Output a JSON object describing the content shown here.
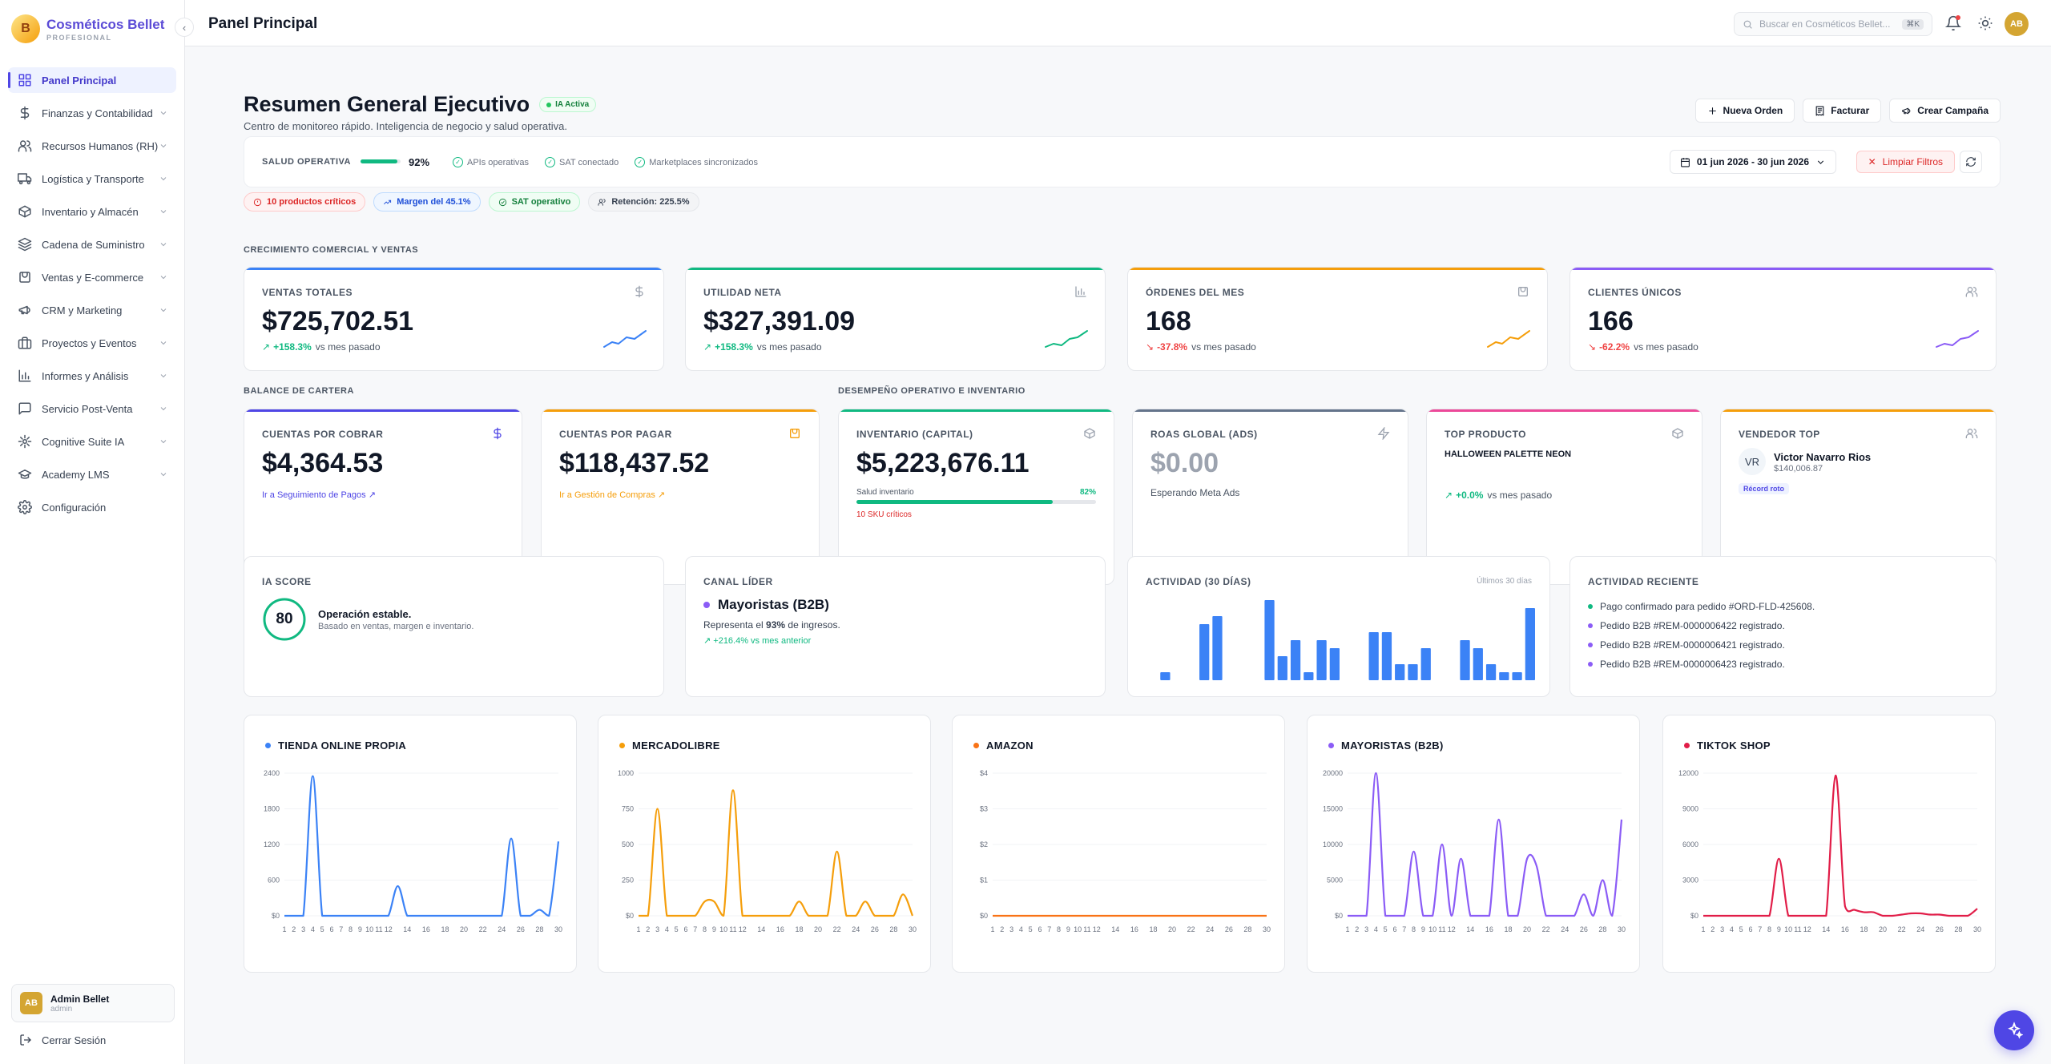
{
  "brand": {
    "name": "Cosméticos Bellet",
    "sub": "PROFESIONAL",
    "logo_text": "B"
  },
  "sidebar": {
    "collapse_glyph": "‹",
    "items": [
      {
        "label": "Panel Principal",
        "icon": "grid-icon",
        "active": true,
        "chev": false
      },
      {
        "label": "Finanzas y Contabilidad",
        "icon": "dollar-icon",
        "chev": true
      },
      {
        "label": "Recursos Humanos (RH)",
        "icon": "users-icon",
        "chev": true
      },
      {
        "label": "Logística y Transporte",
        "icon": "truck-icon",
        "chev": true
      },
      {
        "label": "Inventario y Almacén",
        "icon": "box-icon",
        "chev": true
      },
      {
        "label": "Cadena de Suministro",
        "icon": "layers-icon",
        "chev": true
      },
      {
        "label": "Ventas y E-commerce",
        "icon": "cart-icon",
        "chev": true
      },
      {
        "label": "CRM y Marketing",
        "icon": "megaphone-icon",
        "chev": true
      },
      {
        "label": "Proyectos y Eventos",
        "icon": "briefcase-icon",
        "chev": true
      },
      {
        "label": "Informes y Análisis",
        "icon": "chart-icon",
        "chev": true
      },
      {
        "label": "Servicio Post-Venta",
        "icon": "message-icon",
        "chev": true
      },
      {
        "label": "Cognitive Suite IA",
        "icon": "brain-icon",
        "chev": true
      },
      {
        "label": "Academy LMS",
        "icon": "graduation-icon",
        "chev": true
      },
      {
        "label": "Configuración",
        "icon": "gear-icon",
        "chev": false
      }
    ]
  },
  "user": {
    "initials": "AB",
    "name": "Admin Bellet",
    "role": "admin",
    "logout": "Cerrar Sesión"
  },
  "topbar": {
    "title": "Panel Principal",
    "search_placeholder": "Buscar en Cosméticos Bellet...",
    "search_kbd": "⌘K",
    "avatar": "AB"
  },
  "header": {
    "title": "Resumen General Ejecutivo",
    "badge": "IA Activa",
    "subtitle": "Centro de monitoreo rápido. Inteligencia de negocio y salud operativa.",
    "actions": [
      {
        "label": "Nueva Orden",
        "icon": "plus-icon"
      },
      {
        "label": "Facturar",
        "icon": "receipt-icon"
      },
      {
        "label": "Crear Campaña",
        "icon": "megaphone-icon"
      }
    ]
  },
  "health": {
    "label": "SALUD OPERATIVA",
    "pct": "92%",
    "pct_value": 0.92,
    "checks": [
      "APIs operativas",
      "SAT conectado",
      "Marketplaces sincronizados"
    ],
    "date_range": "01 jun 2026 - 30 jun 2026",
    "clear": "Limpiar Filtros"
  },
  "chips": [
    {
      "label": "10 productos críticos",
      "color": "#dc2626",
      "bg": "#fef2f2",
      "border": "#fecaca"
    },
    {
      "label": "Margen del 45.1%",
      "color": "#1d4ed8",
      "bg": "#eff6ff",
      "border": "#bfdbfe"
    },
    {
      "label": "SAT operativo",
      "color": "#15803d",
      "bg": "#f0fdf4",
      "border": "#bbf7d0"
    },
    {
      "label": "Retención: 225.5%",
      "color": "#374151",
      "bg": "#f3f4f6",
      "border": "#e5e7eb"
    }
  ],
  "sections": {
    "growth": "CRECIMIENTO COMERCIAL Y VENTAS",
    "balance": "BALANCE DE CARTERA",
    "ops": "DESEMPEÑO OPERATIVO E INVENTARIO"
  },
  "kpis": [
    {
      "label": "VENTAS TOTALES",
      "value": "$725,702.51",
      "trend": "+158.3%",
      "trend_text": "vs mes pasado",
      "color": "#3b82f6",
      "up": true,
      "icon": "dollar-icon"
    },
    {
      "label": "UTILIDAD NETA",
      "value": "$327,391.09",
      "trend": "+158.3%",
      "trend_text": "vs mes pasado",
      "color": "#10b981",
      "up": true,
      "icon": "bar-chart-icon"
    },
    {
      "label": "ÓRDENES DEL MES",
      "value": "168",
      "trend": "-37.8%",
      "trend_text": "vs mes pasado",
      "color": "#f59e0b",
      "up": false,
      "icon": "bag-icon"
    },
    {
      "label": "CLIENTES ÚNICOS",
      "value": "166",
      "trend": "-62.2%",
      "trend_text": "vs mes pasado",
      "color": "#8b5cf6",
      "up": false,
      "icon": "users-icon"
    }
  ],
  "balance": [
    {
      "label": "CUENTAS POR COBRAR",
      "value": "$4,364.53",
      "link": "Ir a Seguimiento de Pagos ↗",
      "color": "#4f46e5"
    },
    {
      "label": "CUENTAS POR PAGAR",
      "value": "$118,437.52",
      "link": "Ir a Gestión de Compras ↗",
      "color": "#f59e0b"
    }
  ],
  "ops": {
    "inventory": {
      "label": "INVENTARIO (CAPITAL)",
      "value": "$5,223,676.11",
      "health_label": "Salud inventario",
      "health_pct": "82%",
      "health_value": 0.82,
      "critical": "10 SKU críticos"
    },
    "roas": {
      "label": "ROAS GLOBAL (ADS)",
      "value": "$0.00",
      "note": "Esperando Meta Ads"
    },
    "top": {
      "label": "TOP PRODUCTO",
      "product": "HALLOWEEN PALETTE NEON",
      "trend": "+0.0%",
      "trend_text": "vs mes pasado"
    },
    "seller": {
      "label": "VENDEDOR TOP",
      "initials": "VR",
      "name": "Victor Navarro Rios",
      "amount": "$140,006.87",
      "badge": "Récord roto"
    }
  },
  "iascore": {
    "label": "IA SCORE",
    "score": "80",
    "score_value": 80,
    "title": "Operación estable.",
    "subtitle": "Basado en ventas, margen e inventario."
  },
  "channel": {
    "label": "CANAL LÍDER",
    "name": "Mayoristas (B2B)",
    "desc_pre": "Representa el ",
    "desc_pct": "93%",
    "desc_post": " de ingresos.",
    "trend": "↗ +216.4% vs mes anterior"
  },
  "activity": {
    "label": "ACTIVIDAD (30 DÍAS)",
    "range": "Últimos 30 días"
  },
  "recent": {
    "label": "ACTIVIDAD RECIENTE",
    "items": [
      {
        "text": "Pago confirmado para pedido #ORD-FLD-425608.",
        "color": "#10b981"
      },
      {
        "text": "Pedido B2B #REM-0000006422 registrado.",
        "color": "#8b5cf6"
      },
      {
        "text": "Pedido B2B #REM-0000006421 registrado.",
        "color": "#8b5cf6"
      },
      {
        "text": "Pedido B2B #REM-0000006423 registrado.",
        "color": "#8b5cf6"
      }
    ]
  },
  "chart_data": [
    {
      "type": "bar",
      "title": "ACTIVIDAD (30 DÍAS)",
      "x": [
        1,
        2,
        3,
        4,
        5,
        6,
        7,
        8,
        9,
        10,
        11,
        12,
        13,
        14,
        15,
        16,
        17,
        18,
        19,
        20,
        21,
        22,
        23,
        24,
        25,
        26,
        27,
        28,
        29,
        30
      ],
      "values": [
        0,
        1,
        0,
        0,
        7,
        8,
        0,
        0,
        0,
        10,
        3,
        5,
        1,
        5,
        4,
        0,
        0,
        6,
        6,
        2,
        2,
        4,
        0,
        0,
        5,
        4,
        2,
        1,
        1,
        9
      ],
      "color": "#3b82f6"
    },
    {
      "type": "line",
      "title": "TIENDA ONLINE PROPIA",
      "color": "#3b82f6",
      "x_ticks": [
        "1",
        "2",
        "3",
        "4",
        "5",
        "6",
        "7",
        "8",
        "9",
        "10",
        "11",
        "12",
        "14",
        "16",
        "18",
        "20",
        "22",
        "24",
        "26",
        "28",
        "30"
      ],
      "y_ticks": [
        "$0",
        "600",
        "1200",
        "1800",
        "2400"
      ],
      "ylim": [
        0,
        2400
      ],
      "values": [
        0,
        0,
        0,
        2350,
        0,
        0,
        0,
        0,
        0,
        0,
        0,
        0,
        500,
        0,
        0,
        0,
        0,
        0,
        0,
        0,
        0,
        0,
        0,
        0,
        1300,
        0,
        0,
        100,
        0,
        1250
      ]
    },
    {
      "type": "line",
      "title": "MERCADOLIBRE",
      "color": "#f59e0b",
      "x_ticks": [
        "1",
        "2",
        "3",
        "4",
        "5",
        "6",
        "7",
        "8",
        "9",
        "10",
        "11",
        "12",
        "14",
        "16",
        "18",
        "20",
        "22",
        "24",
        "26",
        "28",
        "30"
      ],
      "y_ticks": [
        "$0",
        "250",
        "500",
        "750",
        "1000"
      ],
      "ylim": [
        0,
        1000
      ],
      "values": [
        0,
        0,
        750,
        0,
        0,
        0,
        0,
        100,
        100,
        0,
        880,
        0,
        0,
        0,
        0,
        0,
        0,
        100,
        0,
        0,
        0,
        450,
        0,
        0,
        100,
        0,
        0,
        0,
        150,
        0
      ]
    },
    {
      "type": "line",
      "title": "AMAZON",
      "color": "#f97316",
      "x_ticks": [
        "1",
        "2",
        "3",
        "4",
        "5",
        "6",
        "7",
        "8",
        "9",
        "10",
        "11",
        "12",
        "14",
        "16",
        "18",
        "20",
        "22",
        "24",
        "26",
        "28",
        "30"
      ],
      "y_ticks": [
        "$0",
        "$1",
        "$2",
        "$3",
        "$4"
      ],
      "ylim": [
        0,
        4
      ],
      "values": [
        0,
        0,
        0,
        0,
        0,
        0,
        0,
        0,
        0,
        0,
        0,
        0,
        0,
        0,
        0,
        0,
        0,
        0,
        0,
        0,
        0,
        0,
        0,
        0,
        0,
        0,
        0,
        0,
        0,
        0
      ]
    },
    {
      "type": "line",
      "title": "MAYORISTAS (B2B)",
      "color": "#8b5cf6",
      "x_ticks": [
        "1",
        "2",
        "3",
        "4",
        "5",
        "6",
        "7",
        "8",
        "9",
        "10",
        "11",
        "12",
        "14",
        "16",
        "18",
        "20",
        "22",
        "24",
        "26",
        "28",
        "30"
      ],
      "y_ticks": [
        "$0",
        "5000",
        "10000",
        "15000",
        "20000"
      ],
      "ylim": [
        0,
        20000
      ],
      "values": [
        0,
        0,
        0,
        20000,
        0,
        0,
        0,
        9000,
        0,
        0,
        10000,
        0,
        8000,
        0,
        0,
        0,
        13500,
        0,
        0,
        8000,
        7000,
        0,
        0,
        0,
        0,
        3000,
        0,
        5000,
        0,
        13500
      ]
    },
    {
      "type": "line",
      "title": "TIKTOK SHOP",
      "color": "#e11d48",
      "x_ticks": [
        "1",
        "2",
        "3",
        "4",
        "5",
        "6",
        "7",
        "8",
        "9",
        "10",
        "11",
        "12",
        "14",
        "16",
        "18",
        "20",
        "22",
        "24",
        "26",
        "28",
        "30"
      ],
      "y_ticks": [
        "$0",
        "3000",
        "6000",
        "9000",
        "12000"
      ],
      "ylim": [
        0,
        12000
      ],
      "values": [
        0,
        0,
        0,
        0,
        0,
        0,
        0,
        0,
        4800,
        0,
        0,
        0,
        0,
        0,
        11800,
        800,
        500,
        300,
        300,
        0,
        0,
        100,
        200,
        200,
        100,
        100,
        0,
        0,
        0,
        600
      ]
    }
  ]
}
